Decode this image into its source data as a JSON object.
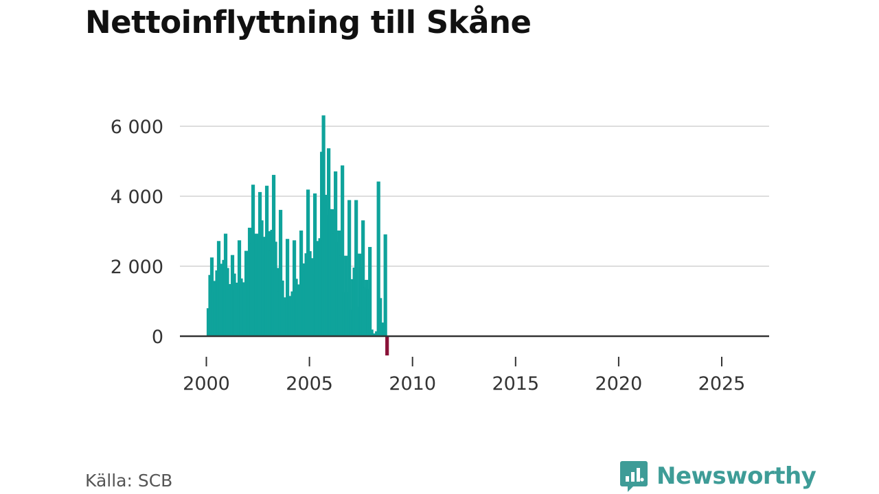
{
  "title": "Nettoinflyttning till Skåne",
  "source": "Källa: SCB",
  "brand": {
    "name": "Newsworthy",
    "icon": "newsworthy-logo-icon"
  },
  "colors": {
    "positive": "#0fa39b",
    "negative": "#8a1238",
    "grid": "#dddddd",
    "axis": "#333333",
    "brand": "#3e9c97"
  },
  "chart_data": {
    "type": "bar",
    "title": "Nettoinflyttning till Skåne",
    "xlabel": "",
    "ylabel": "",
    "ylim": [
      -600,
      6400
    ],
    "yticks": [
      0,
      2000,
      4000,
      6000
    ],
    "ytick_labels": [
      "0",
      "2 000",
      "4 000",
      "6 000"
    ],
    "xticks": [
      2000,
      2005,
      2010,
      2015,
      2020,
      2025
    ],
    "xtick_labels": [
      "2000",
      "2005",
      "2010",
      "2015",
      "2020",
      "2025"
    ],
    "period": "monthly",
    "start": "2000-01",
    "values": [
      800,
      1750,
      2250,
      1580,
      1260,
      1880,
      2720,
      2070,
      1680,
      2180,
      2930,
      1950,
      1350,
      1490,
      2320,
      1790,
      1330,
      1530,
      2740,
      1650,
      1390,
      1540,
      2440,
      2100,
      3100,
      2660,
      4330,
      2680,
      2930,
      2250,
      4120,
      3310,
      2840,
      2330,
      4300,
      3000,
      2440,
      3040,
      4610,
      2700,
      1950,
      1290,
      3610,
      1590,
      1110,
      920,
      2780,
      1130,
      1150,
      1280,
      2740,
      1640,
      1480,
      950,
      3020,
      2080,
      1860,
      2370,
      4190,
      2430,
      2230,
      1760,
      4080,
      2720,
      2650,
      2800,
      5270,
      6310,
      4040,
      3470,
      5370,
      3630,
      3630,
      2940,
      4710,
      2700,
      3020,
      2310,
      4880,
      1260,
      2300,
      1270,
      3890,
      760,
      1630,
      1960,
      3890,
      840,
      2360,
      2010,
      3310,
      1390,
      1610,
      1350,
      2550,
      190,
      80,
      60,
      140,
      4420,
      1090,
      390,
      380,
      2910,
      -550
    ]
  }
}
